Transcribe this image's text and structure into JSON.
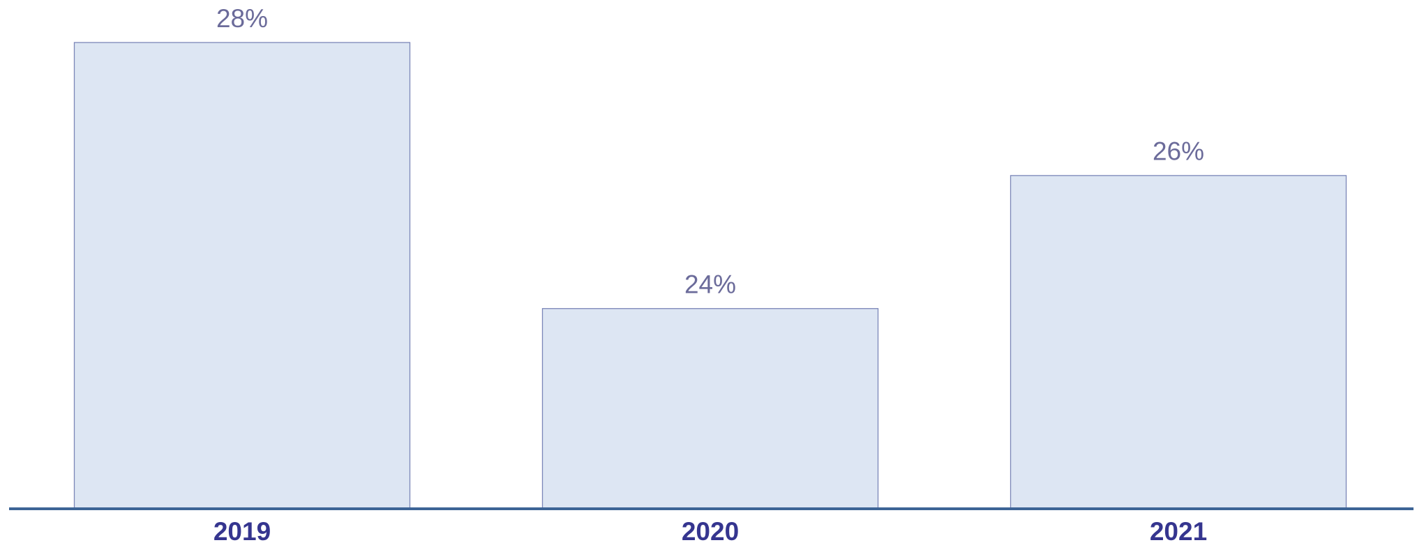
{
  "chart_data": {
    "type": "bar",
    "categories": [
      "2019",
      "2020",
      "2021"
    ],
    "values": [
      28,
      24,
      26
    ],
    "value_labels": [
      "28%",
      "24%",
      "26%"
    ],
    "color": "#dde6f3",
    "ylim": [
      21,
      28
    ]
  }
}
